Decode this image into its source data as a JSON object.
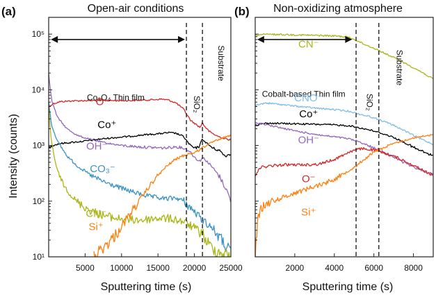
{
  "chart_data": [
    {
      "type": "line",
      "panel_label": "(a)",
      "title": "Open-air conditions",
      "xlabel": "Sputtering time (s)",
      "ylabel": "Intensity (counts)",
      "xlim": [
        0,
        25000
      ],
      "ylim": [
        10,
        200000
      ],
      "yscale": "log",
      "xticks": [
        5000,
        10000,
        15000,
        20000,
        25000
      ],
      "xtick_labels": [
        "5000",
        "10000",
        "15000",
        "20000",
        "25000"
      ],
      "yticks": [
        10,
        100,
        1000,
        10000,
        100000
      ],
      "ytick_labels": [
        "10¹",
        "10²",
        "10³",
        "10⁴",
        "10⁵"
      ],
      "boundaries": [
        18900,
        21100
      ],
      "region_labels": [
        {
          "text": "Co₃O₄ Thin film",
          "x": 9200,
          "y": 6500
        },
        {
          "text": "SiO₂",
          "x": 19950,
          "y": 5500,
          "rotate": true
        },
        {
          "text": "Substrate",
          "x": 23300,
          "y": 30000,
          "rotate": true
        }
      ],
      "arrow": {
        "x_start": 300,
        "x_end": 18700,
        "y": 80000
      },
      "series": [
        {
          "name": "O⁻",
          "label": "O⁻",
          "color": "#d62728",
          "label_x": 7400,
          "label_y": 5300,
          "x": [
            0,
            600,
            1500,
            3000,
            5000,
            8000,
            11000,
            14000,
            15500,
            16500,
            17500,
            18500,
            19500,
            20200,
            20800,
            21100,
            21300,
            22000,
            23000,
            24000,
            25000
          ],
          "y": [
            5000,
            5600,
            6100,
            6300,
            6400,
            6400,
            6400,
            6600,
            6800,
            6500,
            5800,
            4500,
            2800,
            2400,
            2100,
            2600,
            2300,
            1800,
            1500,
            1350,
            1250
          ]
        },
        {
          "name": "Co⁺",
          "label": "Co⁺",
          "color": "#000000",
          "label_x": 8000,
          "label_y": 2050,
          "x": [
            0,
            500,
            1500,
            3000,
            5000,
            7000,
            9000,
            11000,
            13000,
            15000,
            16500,
            17500,
            18500,
            19300,
            20000,
            20600,
            21100,
            21500,
            22500,
            23500,
            24200,
            25000
          ],
          "y": [
            900,
            1000,
            1080,
            1130,
            1200,
            1300,
            1380,
            1450,
            1550,
            1620,
            1700,
            1650,
            1450,
            1050,
            880,
            950,
            1300,
            1150,
            900,
            800,
            650,
            700
          ]
        },
        {
          "name": "OH⁻",
          "label": "OH⁻",
          "color": "#9467bd",
          "label_x": 6600,
          "label_y": 840,
          "x": [
            0,
            400,
            1200,
            2500,
            4000,
            6000,
            8000,
            10000,
            12000,
            14000,
            16000,
            17500,
            18500,
            19300,
            20000,
            20700,
            21100,
            21500,
            22500,
            23500,
            24500,
            25000
          ],
          "y": [
            20000,
            6500,
            3200,
            2000,
            1500,
            1250,
            1100,
            1000,
            950,
            920,
            900,
            950,
            900,
            800,
            620,
            520,
            600,
            560,
            400,
            270,
            150,
            100
          ]
        },
        {
          "name": "CO₃⁻",
          "label": "CO₃⁻",
          "color": "#3a93c3",
          "label_x": 7400,
          "label_y": 330,
          "x": [
            0,
            400,
            1200,
            2500,
            4000,
            6000,
            8000,
            10000,
            12000,
            14000,
            16000,
            17500,
            18500,
            19500,
            20500,
            21500,
            22500,
            23500,
            24200,
            25000
          ],
          "y": [
            6000,
            2300,
            1200,
            650,
            420,
            280,
            210,
            170,
            140,
            120,
            110,
            115,
            100,
            75,
            55,
            42,
            33,
            22,
            16,
            12
          ]
        },
        {
          "name": "CN⁻",
          "label": "CN⁻",
          "color": "#aab516",
          "label_x": 6500,
          "label_y": 52,
          "x": [
            0,
            300,
            1000,
            2000,
            3000,
            4000,
            5500,
            7000,
            9000,
            11000,
            13000,
            15000,
            17000,
            18500,
            19500,
            20500,
            21100,
            21500,
            22500,
            23500,
            24500,
            25000
          ],
          "y": [
            5000,
            1400,
            420,
            200,
            130,
            95,
            70,
            58,
            50,
            46,
            46,
            50,
            48,
            43,
            36,
            30,
            27,
            20,
            14,
            12,
            11,
            10.5
          ]
        },
        {
          "name": "Si⁺",
          "label": "Si⁺",
          "color": "#ff7f0e",
          "label_x": 6500,
          "label_y": 30,
          "x": [
            6200,
            7000,
            8000,
            9000,
            10000,
            11000,
            12000,
            13000,
            14000,
            15000,
            16000,
            17000,
            18000,
            18800,
            19500,
            20200,
            21000,
            21600,
            22500,
            23500,
            24500,
            25000
          ],
          "y": [
            10,
            13,
            17,
            23,
            35,
            55,
            85,
            130,
            200,
            290,
            400,
            520,
            620,
            680,
            720,
            760,
            900,
            1000,
            1150,
            1300,
            1450,
            1500
          ]
        }
      ]
    },
    {
      "type": "line",
      "panel_label": "(b)",
      "title": "Non-oxidizing atmosphere",
      "xlabel": "Sputtering time (s)",
      "ylabel": "",
      "xlim": [
        0,
        9000
      ],
      "ylim": [
        10,
        200000
      ],
      "yscale": "log",
      "xticks": [
        2000,
        4000,
        6000,
        8000
      ],
      "xtick_labels": [
        "2000",
        "4000",
        "6000",
        "8000"
      ],
      "yticks": [
        10,
        100,
        1000,
        10000,
        100000
      ],
      "boundaries": [
        5100,
        6250
      ],
      "region_labels": [
        {
          "text": "Cobalt-based Thin film",
          "x": 2450,
          "y": 7500
        },
        {
          "text": "SiO₂",
          "x": 5650,
          "y": 6000,
          "rotate": true
        },
        {
          "text": "Substrate",
          "x": 7150,
          "y": 25000,
          "rotate": true
        }
      ],
      "arrow": {
        "x_start": 100,
        "x_end": 4900,
        "y": 80000
      },
      "series": [
        {
          "name": "CN⁻",
          "label": "CN⁻",
          "color": "#aab516",
          "label_x": 2700,
          "label_y": 57000,
          "x": [
            0,
            300,
            800,
            1500,
            2500,
            3500,
            4200,
            4700,
            5100,
            5500,
            6000,
            6500,
            7000,
            7500,
            8000,
            8500,
            9000
          ],
          "y": [
            95000,
            98000,
            99000,
            98000,
            96000,
            94000,
            92000,
            88000,
            78000,
            66000,
            56000,
            46000,
            38000,
            31000,
            25000,
            20000,
            15500
          ]
        },
        {
          "name": "CNO⁻",
          "label": "CNO⁻",
          "color": "#7fbde6",
          "label_x": 2700,
          "label_y": 6200,
          "x": [
            0,
            500,
            1000,
            2000,
            3000,
            4000,
            4800,
            5200,
            5800,
            6400,
            7000,
            7600,
            8200,
            9000
          ],
          "y": [
            5200,
            5800,
            5600,
            5100,
            4700,
            4400,
            4100,
            3700,
            3300,
            2800,
            2300,
            1800,
            1400,
            1050
          ]
        },
        {
          "name": "Co⁺",
          "label": "Co⁺",
          "color": "#000000",
          "label_x": 2700,
          "label_y": 3200,
          "x": [
            0,
            500,
            1000,
            2000,
            3000,
            4000,
            4800,
            5200,
            5800,
            6400,
            7000,
            7600,
            8200,
            9000
          ],
          "y": [
            2300,
            2500,
            2500,
            2450,
            2400,
            2350,
            2250,
            2100,
            1900,
            1650,
            1400,
            1100,
            850,
            650
          ]
        },
        {
          "name": "OH⁻",
          "label": "OH⁻",
          "color": "#9467bd",
          "label_x": 2700,
          "label_y": 1100,
          "x": [
            0,
            300,
            700,
            1500,
            2500,
            3500,
            4200,
            4800,
            5300,
            6000,
            6700,
            7400,
            8100,
            9000
          ],
          "y": [
            2500,
            2500,
            2300,
            2000,
            1700,
            1500,
            1400,
            1300,
            1150,
            900,
            700,
            520,
            400,
            300
          ]
        },
        {
          "name": "O⁻",
          "label": "O⁻",
          "color": "#d62728",
          "label_x": 2700,
          "label_y": 220,
          "x": [
            0,
            200,
            800,
            1500,
            2500,
            3200,
            4000,
            4800,
            5400,
            6000,
            6600,
            7200,
            7800,
            8400,
            9000
          ],
          "y": [
            280,
            400,
            430,
            450,
            450,
            460,
            560,
            780,
            880,
            830,
            720,
            600,
            480,
            370,
            290
          ]
        },
        {
          "name": "Si⁺",
          "label": "Si⁺",
          "color": "#ff7f0e",
          "label_x": 2700,
          "label_y": 55,
          "x": [
            0,
            120,
            300,
            700,
            1200,
            2000,
            2800,
            3500,
            4200,
            4700,
            5100,
            5500,
            6000,
            6500,
            7000,
            7500,
            8000,
            8500,
            9000
          ],
          "y": [
            10,
            45,
            75,
            95,
            110,
            140,
            175,
            210,
            270,
            350,
            430,
            560,
            760,
            920,
            1080,
            1220,
            1360,
            1480,
            1550
          ]
        }
      ]
    }
  ]
}
